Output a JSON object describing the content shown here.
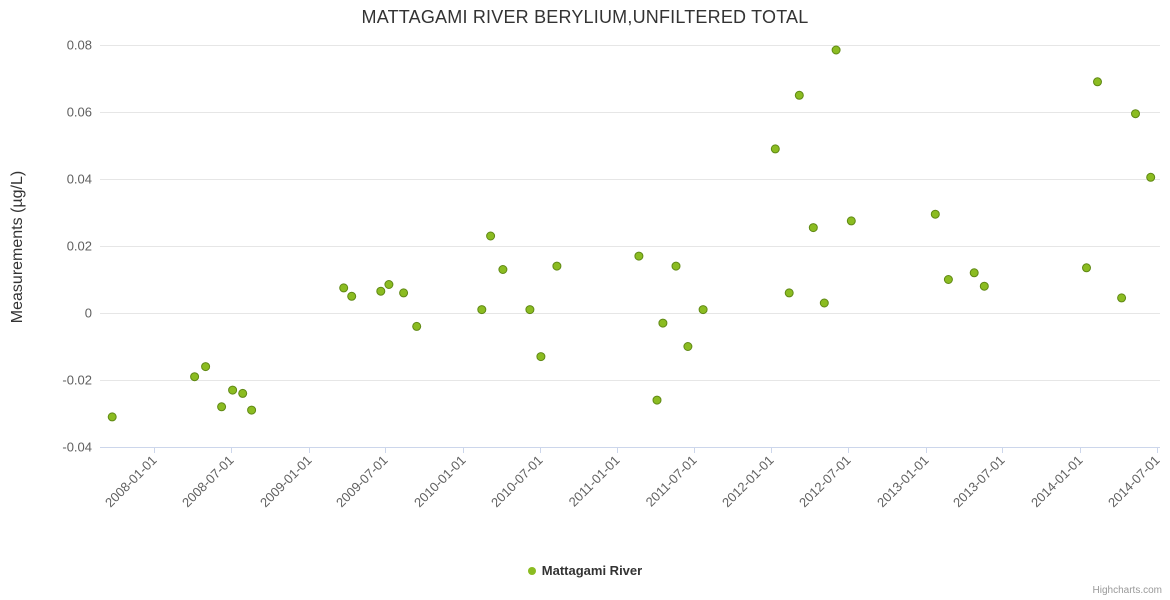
{
  "chart": {
    "title": "MATTAGAMI RIVER BERYLIUM,UNFILTERED TOTAL",
    "y_axis_title": "Measurements (µg/L)",
    "legend_label": "Mattagami River",
    "credits": "Highcharts.com",
    "colors": {
      "marker_fill": "#8bbc21",
      "marker_stroke": "#5f8814",
      "grid": "#e6e6e6",
      "axis": "#ccd6eb",
      "tick_label": "#606060",
      "title": "#333333"
    }
  },
  "chart_data": {
    "type": "scatter",
    "title": "MATTAGAMI RIVER BERYLIUM,UNFILTERED TOTAL",
    "xlabel": "",
    "ylabel": "Measurements (µg/L)",
    "ylim": [
      -0.04,
      0.08
    ],
    "yticks": [
      -0.04,
      -0.02,
      0,
      0.02,
      0.04,
      0.06,
      0.08
    ],
    "xlim": [
      "2007-08-25",
      "2014-07-09"
    ],
    "xticks": [
      "2008-01-01",
      "2008-07-01",
      "2009-01-01",
      "2009-07-01",
      "2010-01-01",
      "2010-07-01",
      "2011-01-01",
      "2011-07-01",
      "2012-01-01",
      "2012-07-01",
      "2013-01-01",
      "2013-07-01",
      "2014-01-01",
      "2014-07-01"
    ],
    "grid": "horizontal",
    "legend_position": "bottom-center",
    "series": [
      {
        "name": "Mattagami River",
        "points": [
          {
            "x": "2007-09-23",
            "y": -0.031
          },
          {
            "x": "2008-04-05",
            "y": -0.019
          },
          {
            "x": "2008-05-01",
            "y": -0.016
          },
          {
            "x": "2008-06-08",
            "y": -0.028
          },
          {
            "x": "2008-07-04",
            "y": -0.023
          },
          {
            "x": "2008-07-28",
            "y": -0.024
          },
          {
            "x": "2008-08-18",
            "y": -0.029
          },
          {
            "x": "2009-03-24",
            "y": 0.0075
          },
          {
            "x": "2009-04-12",
            "y": 0.005
          },
          {
            "x": "2009-06-20",
            "y": 0.0065
          },
          {
            "x": "2009-07-09",
            "y": 0.0085
          },
          {
            "x": "2009-08-13",
            "y": 0.006
          },
          {
            "x": "2009-09-13",
            "y": -0.004
          },
          {
            "x": "2010-02-14",
            "y": 0.001
          },
          {
            "x": "2010-03-07",
            "y": 0.023
          },
          {
            "x": "2010-04-05",
            "y": 0.013
          },
          {
            "x": "2010-06-08",
            "y": 0.001
          },
          {
            "x": "2010-07-04",
            "y": -0.013
          },
          {
            "x": "2010-08-11",
            "y": 0.014
          },
          {
            "x": "2011-02-21",
            "y": 0.017
          },
          {
            "x": "2011-04-05",
            "y": -0.026
          },
          {
            "x": "2011-04-19",
            "y": -0.003
          },
          {
            "x": "2011-05-20",
            "y": 0.014
          },
          {
            "x": "2011-06-17",
            "y": -0.01
          },
          {
            "x": "2011-07-23",
            "y": 0.001
          },
          {
            "x": "2012-01-10",
            "y": 0.049
          },
          {
            "x": "2012-02-12",
            "y": 0.006
          },
          {
            "x": "2012-03-07",
            "y": 0.065
          },
          {
            "x": "2012-04-09",
            "y": 0.0255
          },
          {
            "x": "2012-05-05",
            "y": 0.003
          },
          {
            "x": "2012-06-02",
            "y": 0.0785
          },
          {
            "x": "2012-07-08",
            "y": 0.0275
          },
          {
            "x": "2013-01-23",
            "y": 0.0295
          },
          {
            "x": "2013-02-23",
            "y": 0.01
          },
          {
            "x": "2013-04-25",
            "y": 0.012
          },
          {
            "x": "2013-05-19",
            "y": 0.008
          },
          {
            "x": "2014-01-16",
            "y": 0.0135
          },
          {
            "x": "2014-02-11",
            "y": 0.069
          },
          {
            "x": "2014-04-09",
            "y": 0.0045
          },
          {
            "x": "2014-05-12",
            "y": 0.0595
          },
          {
            "x": "2014-06-17",
            "y": 0.0405
          }
        ]
      }
    ]
  }
}
